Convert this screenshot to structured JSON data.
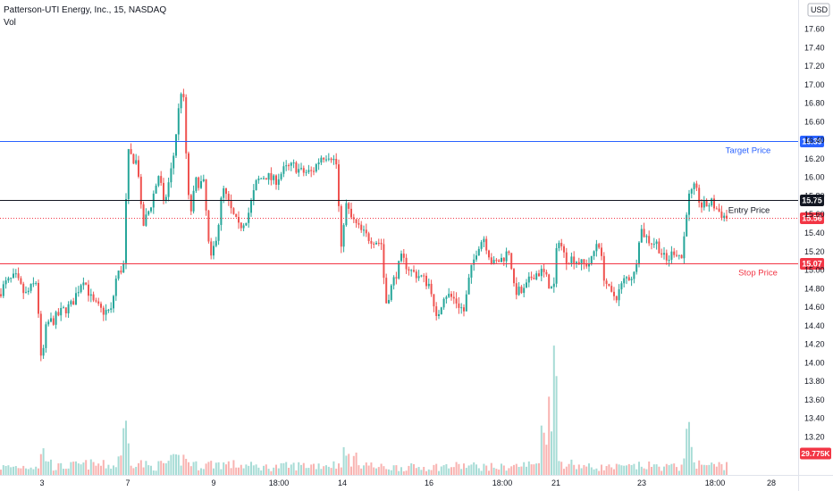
{
  "header": {
    "symbol_title": "Patterson-UTI Energy, Inc., 15, NASDAQ",
    "volume_label": "Vol"
  },
  "colors": {
    "up": "#26a69a",
    "down": "#ef5350",
    "vol_up": "#a7dcd6",
    "vol_down": "#f8b3b1",
    "target": "#2962ff",
    "entry": "#131722",
    "stop": "#f23645",
    "current": "#f23645",
    "axis_text": "#131722"
  },
  "chart_data": {
    "type": "candlestick",
    "title": "Patterson-UTI Energy, Inc., 15, NASDAQ",
    "currency": "USD",
    "y_range": [
      12.9,
      17.8
    ],
    "y_ticks": [
      "17.60",
      "17.40",
      "17.20",
      "17.00",
      "16.80",
      "16.60",
      "16.40",
      "16.20",
      "16.00",
      "15.80",
      "15.60",
      "15.40",
      "15.20",
      "15.00",
      "14.80",
      "14.60",
      "14.40",
      "14.20",
      "14.00",
      "13.80",
      "13.60",
      "13.40",
      "13.20"
    ],
    "x_ticks": [
      "3",
      "7",
      "9",
      "18:00",
      "14",
      "16",
      "18:00",
      "21",
      "23",
      "18:00",
      "28"
    ],
    "levels": [
      {
        "name": "Target Price",
        "value": 16.39,
        "label": "16.39",
        "color": "#2962ff"
      },
      {
        "name": "Entry Price",
        "value": 15.75,
        "label": "15.75",
        "color": "#131722"
      },
      {
        "name": "Stop Price",
        "value": 15.07,
        "label": "15.07",
        "color": "#f23645"
      }
    ],
    "current_price": {
      "value": 15.56,
      "label": "15.56"
    },
    "volume_label": "29.775K",
    "path": [
      [
        0,
        14.72
      ],
      [
        9,
        14.85
      ],
      [
        20,
        14.92
      ],
      [
        31,
        14.72
      ],
      [
        44,
        14.88
      ],
      [
        47,
        14.32
      ],
      [
        49,
        13.95
      ],
      [
        55,
        14.42
      ],
      [
        62,
        14.45
      ],
      [
        72,
        14.55
      ],
      [
        83,
        14.62
      ],
      [
        96,
        14.92
      ],
      [
        106,
        14.65
      ],
      [
        117,
        14.55
      ],
      [
        127,
        14.55
      ],
      [
        133,
        14.92
      ],
      [
        141,
        15.05
      ],
      [
        146,
        16.25
      ],
      [
        157,
        16.15
      ],
      [
        162,
        15.45
      ],
      [
        171,
        15.68
      ],
      [
        181,
        16.05
      ],
      [
        186,
        15.68
      ],
      [
        196,
        16.15
      ],
      [
        203,
        16.75
      ],
      [
        207,
        17.05
      ],
      [
        211,
        16.25
      ],
      [
        215,
        15.55
      ],
      [
        222,
        15.95
      ],
      [
        231,
        15.92
      ],
      [
        238,
        15.05
      ],
      [
        247,
        15.48
      ],
      [
        252,
        15.88
      ],
      [
        262,
        15.62
      ],
      [
        270,
        15.45
      ],
      [
        280,
        15.58
      ],
      [
        290,
        15.95
      ],
      [
        300,
        16.02
      ],
      [
        310,
        15.95
      ],
      [
        321,
        16.08
      ],
      [
        332,
        16.12
      ],
      [
        340,
        16.05
      ],
      [
        352,
        16.05
      ],
      [
        362,
        16.22
      ],
      [
        372,
        16.25
      ],
      [
        380,
        16.12
      ],
      [
        384,
        15.12
      ],
      [
        389,
        15.72
      ],
      [
        396,
        15.55
      ],
      [
        406,
        15.42
      ],
      [
        414,
        15.35
      ],
      [
        422,
        15.32
      ],
      [
        430,
        15.28
      ],
      [
        434,
        14.62
      ],
      [
        442,
        14.85
      ],
      [
        452,
        15.12
      ],
      [
        463,
        14.98
      ],
      [
        474,
        14.92
      ],
      [
        485,
        14.82
      ],
      [
        490,
        14.42
      ],
      [
        500,
        14.75
      ],
      [
        511,
        14.68
      ],
      [
        522,
        14.55
      ],
      [
        528,
        14.92
      ],
      [
        537,
        15.25
      ],
      [
        544,
        15.35
      ],
      [
        554,
        15.05
      ],
      [
        565,
        15.12
      ],
      [
        573,
        15.22
      ],
      [
        578,
        14.78
      ],
      [
        588,
        14.75
      ],
      [
        599,
        14.95
      ],
      [
        610,
        14.98
      ],
      [
        622,
        14.75
      ],
      [
        627,
        15.38
      ],
      [
        635,
        15.12
      ],
      [
        645,
        15.12
      ],
      [
        655,
        15.05
      ],
      [
        664,
        15.08
      ],
      [
        672,
        15.35
      ],
      [
        678,
        14.95
      ],
      [
        686,
        14.72
      ],
      [
        693,
        14.72
      ],
      [
        702,
        14.9
      ],
      [
        713,
        14.95
      ],
      [
        719,
        15.45
      ],
      [
        728,
        15.32
      ],
      [
        738,
        15.28
      ],
      [
        748,
        15.08
      ],
      [
        758,
        15.22
      ],
      [
        766,
        15.12
      ],
      [
        772,
        15.75
      ],
      [
        780,
        15.88
      ],
      [
        788,
        15.68
      ],
      [
        799,
        15.72
      ],
      [
        808,
        15.62
      ],
      [
        815,
        15.56
      ]
    ],
    "volume_path": [
      [
        0,
        10
      ],
      [
        44,
        12
      ],
      [
        47,
        32
      ],
      [
        60,
        10
      ],
      [
        100,
        14
      ],
      [
        130,
        12
      ],
      [
        141,
        60
      ],
      [
        146,
        20
      ],
      [
        170,
        10
      ],
      [
        205,
        22
      ],
      [
        220,
        12
      ],
      [
        240,
        15
      ],
      [
        300,
        10
      ],
      [
        330,
        12
      ],
      [
        380,
        14
      ],
      [
        384,
        26
      ],
      [
        420,
        10
      ],
      [
        470,
        10
      ],
      [
        520,
        12
      ],
      [
        560,
        10
      ],
      [
        600,
        14
      ],
      [
        622,
        140
      ],
      [
        625,
        18
      ],
      [
        660,
        10
      ],
      [
        700,
        10
      ],
      [
        720,
        12
      ],
      [
        760,
        10
      ],
      [
        770,
        50
      ],
      [
        780,
        14
      ],
      [
        800,
        12
      ],
      [
        815,
        14
      ]
    ]
  }
}
